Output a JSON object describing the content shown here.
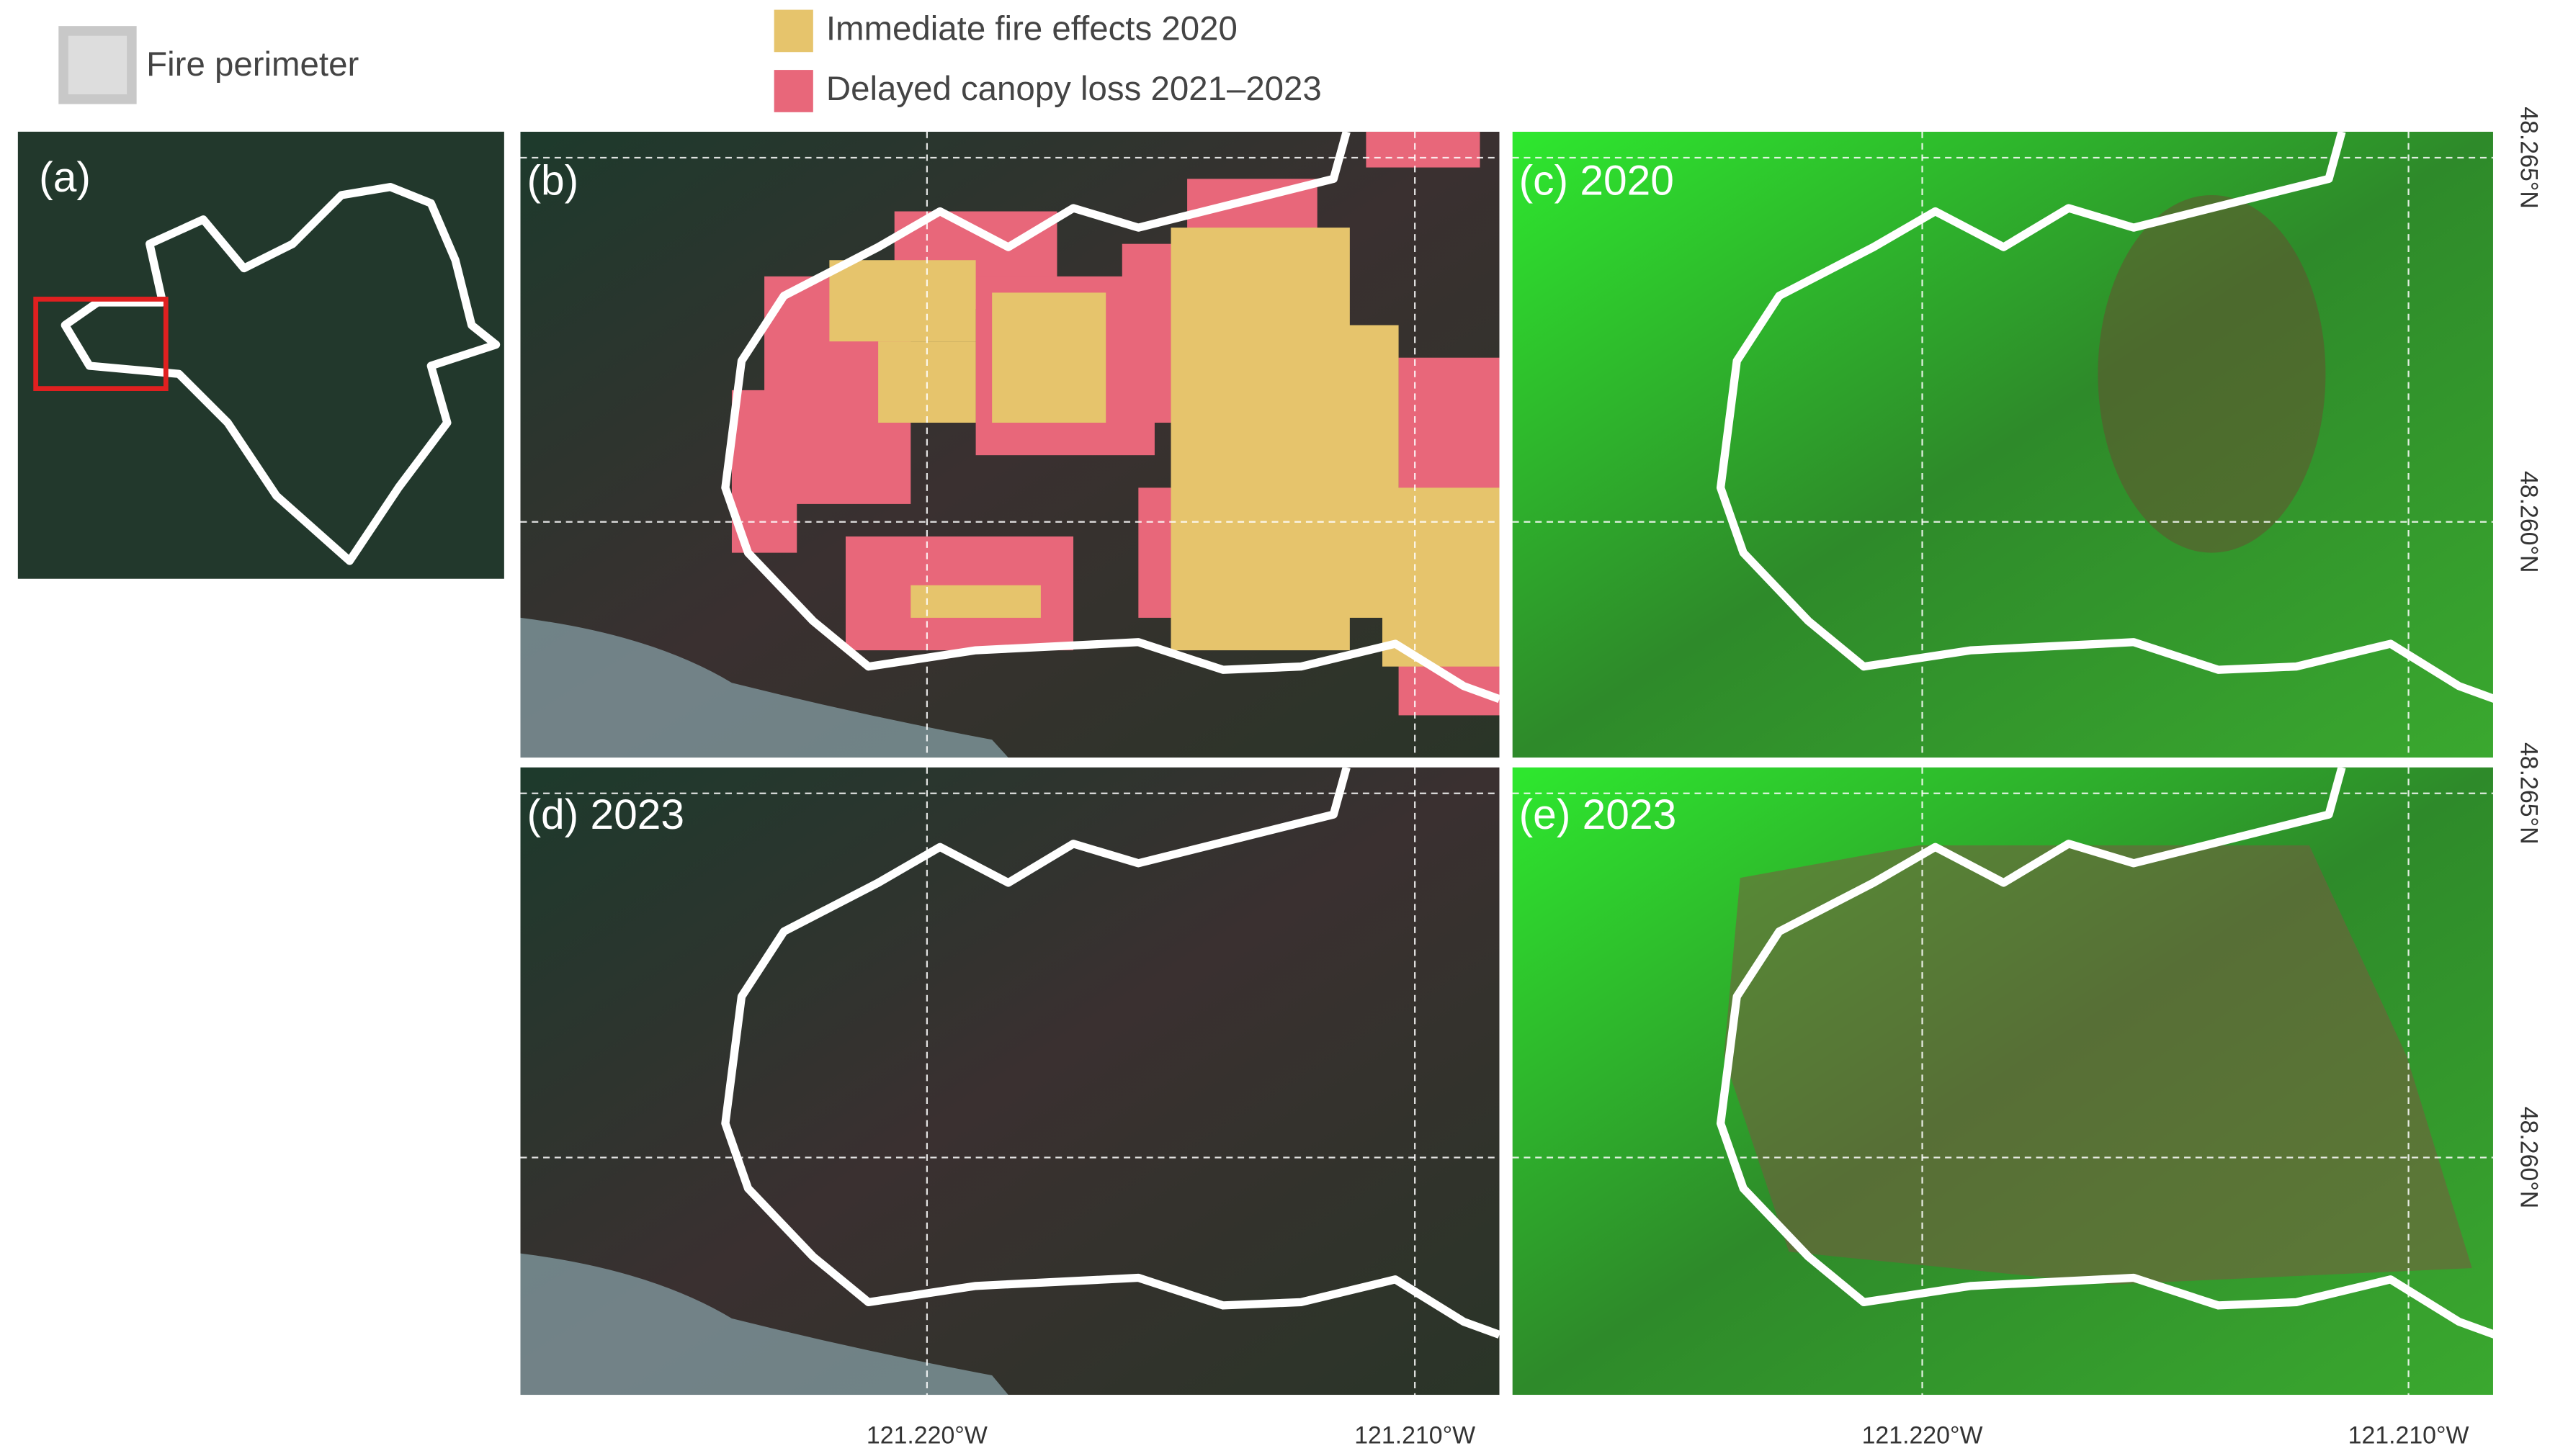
{
  "legend": {
    "perimeter": {
      "label": "Fire perimeter"
    },
    "items": [
      {
        "label": "Immediate fire effects 2020",
        "color": "#e6c46c"
      },
      {
        "label": "Delayed canopy loss 2021–2023",
        "color": "#e8677a"
      }
    ]
  },
  "panels": {
    "a": "(a)",
    "b": "(b)",
    "c": "(c) 2020",
    "d": "(d) 2023",
    "e": "(e) 2023"
  },
  "x_axis_labels": [
    "121.220°W",
    "121.210°W"
  ],
  "y_axis_labels": [
    "48.265°N",
    "48.260°N"
  ]
}
